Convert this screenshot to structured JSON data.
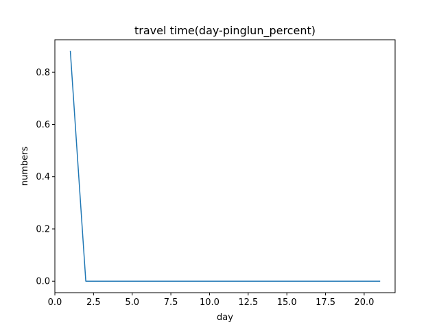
{
  "chart_data": {
    "type": "line",
    "title": "travel time(day-pinglun_percent)",
    "xlabel": "day",
    "ylabel": "numbers",
    "xlim": [
      0,
      22
    ],
    "ylim": [
      -0.044,
      0.924
    ],
    "xticks": [
      0.0,
      2.5,
      5.0,
      7.5,
      10.0,
      12.5,
      15.0,
      17.5,
      20.0
    ],
    "xtick_labels": [
      "0.0",
      "2.5",
      "5.0",
      "7.5",
      "10.0",
      "12.5",
      "15.0",
      "17.5",
      "20.0"
    ],
    "yticks": [
      0.0,
      0.2,
      0.4,
      0.6,
      0.8
    ],
    "ytick_labels": [
      "0.0",
      "0.2",
      "0.4",
      "0.6",
      "0.8"
    ],
    "grid": false,
    "series": [
      {
        "color": "#1f77b4",
        "x": [
          1,
          2,
          3,
          4,
          5,
          6,
          7,
          8,
          9,
          10,
          11,
          12,
          13,
          14,
          15,
          16,
          17,
          18,
          19,
          20,
          21
        ],
        "y": [
          0.88,
          0,
          0,
          0,
          0,
          0,
          0,
          0,
          0,
          0,
          0,
          0,
          0,
          0,
          0,
          0,
          0,
          0,
          0,
          0,
          0
        ]
      }
    ]
  }
}
